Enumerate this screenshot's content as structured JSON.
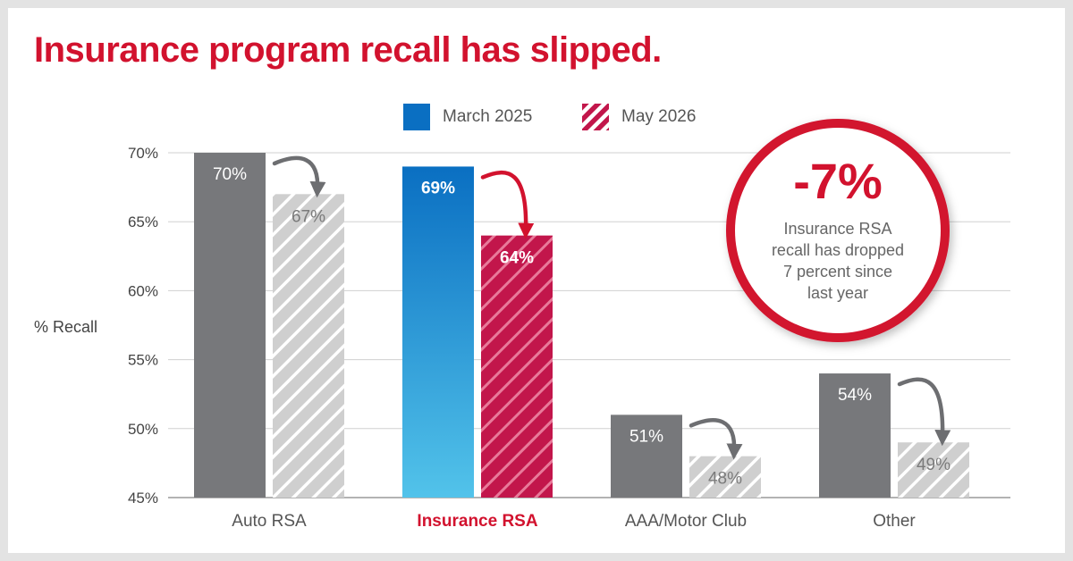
{
  "title": "Insurance program recall has slipped.",
  "legend": [
    {
      "label": "March 2025",
      "swatch": "blue-solid-swatch"
    },
    {
      "label": "May 2026",
      "swatch": "red-hatched-swatch"
    }
  ],
  "callout": {
    "value": "-7%",
    "text": [
      "Insurance RSA",
      "recall has dropped",
      "7 percent since",
      "last year"
    ]
  },
  "colors": {
    "title": "#d2122e",
    "gray_bar": "#77787b",
    "gray_hatched": "#cfcfcf",
    "blue_top": "#0a6fc2",
    "blue_bottom": "#52c3ea",
    "red_hatched": "#c2164b",
    "arrow_gray": "#6d6e71",
    "arrow_red": "#d2122e",
    "grid": "#d0d0d0",
    "ring": "#d2122e"
  },
  "chart_data": {
    "type": "bar",
    "title": "Insurance program recall has slipped.",
    "ylabel": "% Recall",
    "xlabel": "",
    "ylim": [
      45,
      70
    ],
    "yticks": [
      "45%",
      "50%",
      "55%",
      "60%",
      "65%",
      "70%"
    ],
    "ytick_values": [
      45,
      50,
      55,
      60,
      65,
      70
    ],
    "grid": true,
    "legend_position": "top-center",
    "categories": [
      "Auto RSA",
      "Insurance RSA",
      "AAA/Motor Club",
      "Other"
    ],
    "highlight_category": "Insurance RSA",
    "series": [
      {
        "name": "March 2025",
        "values": [
          70,
          69,
          51,
          54
        ],
        "labels": [
          "70%",
          "69%",
          "51%",
          "54%"
        ]
      },
      {
        "name": "May 2026",
        "values": [
          67,
          64,
          48,
          49
        ],
        "labels": [
          "67%",
          "64%",
          "48%",
          "49%"
        ]
      }
    ]
  }
}
